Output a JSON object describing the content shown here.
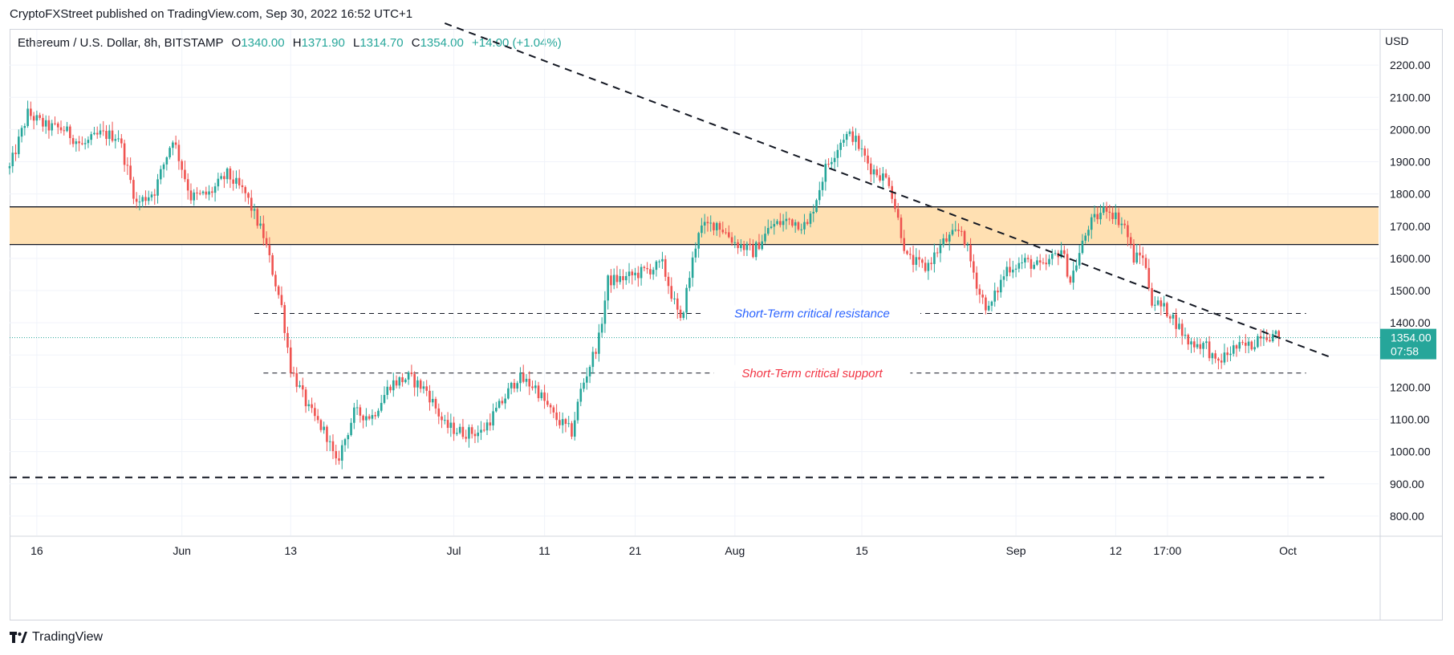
{
  "header": {
    "publisher": "CryptoFXStreet published on TradingView.com, Sep 30, 2022 16:52 UTC+1"
  },
  "legend": {
    "symbol": "Ethereum / U.S. Dollar, 8h, BITSTAMP",
    "o_label": "O",
    "o_value": "1340.00",
    "h_label": "H",
    "h_value": "1371.90",
    "l_label": "L",
    "l_value": "1314.70",
    "c_label": "C",
    "c_value": "1354.00",
    "change": "+14.00 (+1.04%)"
  },
  "footer": {
    "brand": "TradingView"
  },
  "colors": {
    "up": "#26a69a",
    "down": "#ef5350",
    "zone": "#ffe0b2",
    "resistance_text": "#2962ff",
    "support_text": "#f23645"
  },
  "chart_data": {
    "type": "candlestick",
    "interval": "8h",
    "y_unit": "USD",
    "ylim": [
      740,
      2310
    ],
    "y_ticks": [
      800,
      900,
      1000,
      1100,
      1200,
      1300,
      1400,
      1500,
      1600,
      1700,
      1800,
      1900,
      2000,
      2100,
      2200
    ],
    "y_tick_labels": [
      "800.00",
      "900.00",
      "1000.00",
      "1100.00",
      "1200.00",
      "1300.00",
      "1400.00",
      "1500.00",
      "1600.00",
      "1700.00",
      "1800.00",
      "1900.00",
      "2000.00",
      "2100.00",
      "2200.00"
    ],
    "x_tick_labels": [
      "16",
      "Jun",
      "13",
      "Jul",
      "11",
      "21",
      "Aug",
      "15",
      "Sep",
      "12",
      "17:00",
      "Oct"
    ],
    "x_tick_dates": [
      "2022-05-16",
      "2022-06-01",
      "2022-06-13",
      "2022-07-01",
      "2022-07-11",
      "2022-07-21",
      "2022-08-01",
      "2022-08-15",
      "2022-09-01",
      "2022-09-12",
      "2022-09-17 17:00",
      "2022-10-01"
    ],
    "x_range": [
      "2022-05-13",
      "2022-10-11"
    ],
    "grid": true,
    "last_price": {
      "value": 1354,
      "label": "1354.00",
      "countdown": "07:58"
    },
    "zone": {
      "low": 1643,
      "high": 1760
    },
    "levels": [
      {
        "value": 1429,
        "label": "Short-Term critical resistance",
        "from": "2022-06-09",
        "to": "2022-10-03"
      },
      {
        "value": 1244,
        "label": "Short-Term critical support",
        "from": "2022-06-10",
        "to": "2022-10-03"
      },
      {
        "value": 920,
        "label": "",
        "from": "2022-05-13",
        "to": "2022-10-05"
      }
    ],
    "trendline": {
      "from": {
        "date": "2022-06-30",
        "value": 2330
      },
      "to": {
        "date": "2022-10-06",
        "value": 1290
      }
    },
    "anchors": [
      [
        "2022-05-13",
        1880
      ],
      [
        "2022-05-15",
        2050
      ],
      [
        "2022-05-17",
        2010
      ],
      [
        "2022-05-19",
        2000
      ],
      [
        "2022-05-21",
        1950
      ],
      [
        "2022-05-23",
        1985
      ],
      [
        "2022-05-25",
        1980
      ],
      [
        "2022-05-27",
        1770
      ],
      [
        "2022-05-29",
        1810
      ],
      [
        "2022-05-31",
        1975
      ],
      [
        "2022-06-02",
        1790
      ],
      [
        "2022-06-04",
        1800
      ],
      [
        "2022-06-06",
        1860
      ],
      [
        "2022-06-08",
        1800
      ],
      [
        "2022-06-10",
        1670
      ],
      [
        "2022-06-12",
        1450
      ],
      [
        "2022-06-13",
        1260
      ],
      [
        "2022-06-15",
        1130
      ],
      [
        "2022-06-17",
        1050
      ],
      [
        "2022-06-18",
        960
      ],
      [
        "2022-06-20",
        1120
      ],
      [
        "2022-06-22",
        1110
      ],
      [
        "2022-06-24",
        1210
      ],
      [
        "2022-06-26",
        1230
      ],
      [
        "2022-06-28",
        1190
      ],
      [
        "2022-06-30",
        1080
      ],
      [
        "2022-07-02",
        1060
      ],
      [
        "2022-07-04",
        1060
      ],
      [
        "2022-07-06",
        1140
      ],
      [
        "2022-07-08",
        1230
      ],
      [
        "2022-07-10",
        1200
      ],
      [
        "2022-07-12",
        1110
      ],
      [
        "2022-07-14",
        1060
      ],
      [
        "2022-07-15",
        1190
      ],
      [
        "2022-07-17",
        1350
      ],
      [
        "2022-07-18",
        1530
      ],
      [
        "2022-07-20",
        1540
      ],
      [
        "2022-07-22",
        1560
      ],
      [
        "2022-07-24",
        1580
      ],
      [
        "2022-07-26",
        1400
      ],
      [
        "2022-07-28",
        1690
      ],
      [
        "2022-07-30",
        1710
      ],
      [
        "2022-08-01",
        1650
      ],
      [
        "2022-08-03",
        1620
      ],
      [
        "2022-08-05",
        1700
      ],
      [
        "2022-08-07",
        1720
      ],
      [
        "2022-08-09",
        1700
      ],
      [
        "2022-08-11",
        1880
      ],
      [
        "2022-08-13",
        1980
      ],
      [
        "2022-08-14",
        1980
      ],
      [
        "2022-08-16",
        1880
      ],
      [
        "2022-08-18",
        1840
      ],
      [
        "2022-08-20",
        1600
      ],
      [
        "2022-08-22",
        1570
      ],
      [
        "2022-08-24",
        1650
      ],
      [
        "2022-08-26",
        1690
      ],
      [
        "2022-08-28",
        1490
      ],
      [
        "2022-08-29",
        1440
      ],
      [
        "2022-08-31",
        1570
      ],
      [
        "2022-09-02",
        1590
      ],
      [
        "2022-09-04",
        1570
      ],
      [
        "2022-09-06",
        1630
      ],
      [
        "2022-09-07",
        1530
      ],
      [
        "2022-09-09",
        1700
      ],
      [
        "2022-09-11",
        1760
      ],
      [
        "2022-09-13",
        1700
      ],
      [
        "2022-09-14",
        1600
      ],
      [
        "2022-09-15",
        1610
      ],
      [
        "2022-09-16",
        1470
      ],
      [
        "2022-09-18",
        1430
      ],
      [
        "2022-09-20",
        1340
      ],
      [
        "2022-09-22",
        1330
      ],
      [
        "2022-09-23",
        1270
      ],
      [
        "2022-09-25",
        1320
      ],
      [
        "2022-09-27",
        1330
      ],
      [
        "2022-09-28",
        1370
      ],
      [
        "2022-09-30",
        1354
      ]
    ]
  }
}
